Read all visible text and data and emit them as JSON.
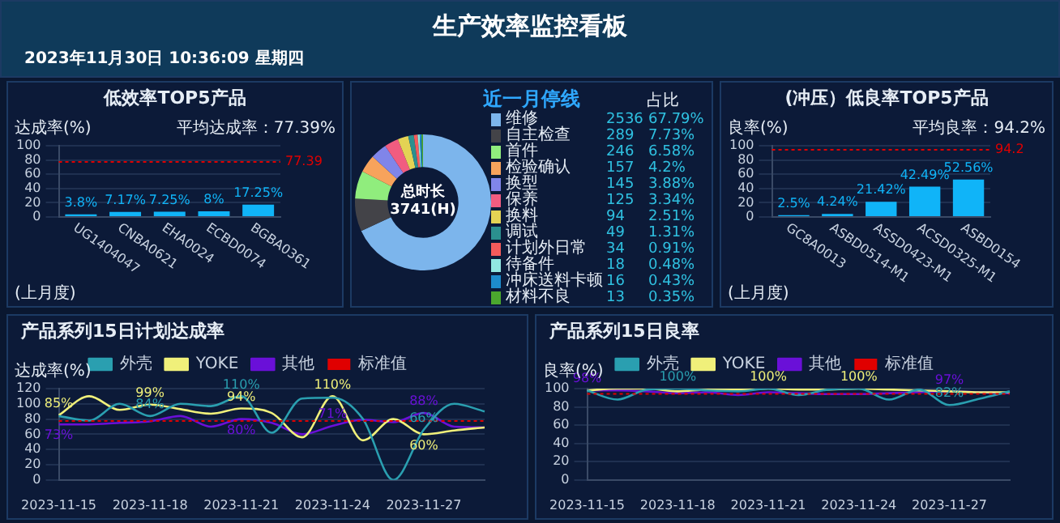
{
  "chart_data": [
    {
      "type": "other",
      "title": "生产效率监控看板",
      "annotations": [
        "2023年11月30日 10:36:09 星期四"
      ]
    },
    {
      "type": "bar",
      "title": "低效率TOP5产品",
      "ylabel": "达成率(%)",
      "categories": [
        "UG1404047",
        "CNBA0621",
        "EHA0024",
        "ECBD0074",
        "BGBA0361"
      ],
      "values": [
        3.8,
        7.17,
        7.25,
        8,
        17.25
      ],
      "value_labels": [
        "3.8%",
        "7.17%",
        "7.25%",
        "8%",
        "17.25%"
      ],
      "color": "#10b4f8",
      "ylim": [
        0,
        100
      ],
      "yticks": [
        0,
        20,
        40,
        60,
        80,
        100
      ],
      "grid": "y",
      "annotations": [
        "平均达成率：77.39%",
        "(上月度)"
      ],
      "ref_lines": [
        {
          "axis": "y",
          "value": 77.39,
          "label": "77.39",
          "color": "#e00000",
          "line_style": "dotted"
        }
      ]
    },
    {
      "type": "donut",
      "title": "近一月停线",
      "legend": "right",
      "legend_title": "占比",
      "annotations": [
        "总时长",
        "3741(H)",
        "2536",
        "289",
        "246",
        "157",
        "145",
        "125",
        "94",
        "49",
        "34",
        "18",
        "16",
        "13"
      ],
      "categories": [
        "维修",
        "自主检查",
        "首件",
        "检验确认",
        "换型",
        "保养",
        "换料",
        "调试",
        "计划外日常",
        "待备件",
        "冲床送料卡顿",
        "材料不良"
      ],
      "values": [
        67.79,
        7.73,
        6.58,
        4.2,
        3.88,
        3.34,
        2.51,
        1.31,
        0.91,
        0.48,
        0.43,
        0.35
      ],
      "value_labels": [
        "67.79%",
        "7.73%",
        "6.58%",
        "4.2%",
        "3.88%",
        "3.34%",
        "2.51%",
        "1.31%",
        "0.91%",
        "0.48%",
        "0.43%",
        "0.35%"
      ],
      "colors": [
        "#7cb5ec",
        "#434348",
        "#90ed7d",
        "#f7a35c",
        "#8085e9",
        "#f15c80",
        "#e4d354",
        "#2b908f",
        "#f45b5b",
        "#91e8e1",
        "#1d8ccc",
        "#4ba82e"
      ]
    },
    {
      "type": "bar",
      "title": "(冲压）低良率TOP5产品",
      "ylabel": "良率(%)",
      "categories": [
        "GC8A0013",
        "ASBD0514-M1",
        "ASSD0423-M1",
        "ACSD0325-M1",
        "ASBD0154"
      ],
      "values": [
        2.5,
        4.24,
        21.42,
        42.49,
        52.56
      ],
      "value_labels": [
        "2.5%",
        "4.24%",
        "21.42%",
        "42.49%",
        "52.56%"
      ],
      "color": "#10b4f8",
      "ylim": [
        0,
        100
      ],
      "yticks": [
        0,
        20,
        40,
        60,
        80,
        100
      ],
      "grid": "y",
      "annotations": [
        "平均良率：94.2%",
        "(上月度)"
      ],
      "ref_lines": [
        {
          "axis": "y",
          "value": 94.2,
          "label": "94.2",
          "color": "#e00000",
          "line_style": "dotted"
        }
      ]
    },
    {
      "type": "line",
      "title": "产品系列15日计划达成率",
      "ylabel": "达成率(%)",
      "legend": "top",
      "grid": "y",
      "ylim": [
        0,
        120
      ],
      "yticks": [
        0,
        20,
        40,
        60,
        80,
        100,
        120
      ],
      "categories": [
        "2023-11-15",
        null,
        null,
        "2023-11-18",
        null,
        null,
        "2023-11-21",
        null,
        null,
        "2023-11-24",
        null,
        null,
        "2023-11-27",
        null,
        null
      ],
      "series": [
        {
          "name": "外壳",
          "color": "#2a9fb0",
          "values": [
            84,
            78,
            100,
            84,
            100,
            97,
            110,
            62,
            107,
            108,
            80,
            0,
            66,
            100,
            90
          ],
          "value_labels": [
            null,
            null,
            null,
            "84%",
            null,
            null,
            "110%",
            null,
            null,
            null,
            null,
            null,
            "66%",
            null,
            null
          ]
        },
        {
          "name": "YOKE",
          "color": "#f0f07a",
          "values": [
            85,
            110,
            92,
            99,
            93,
            87,
            94,
            88,
            56,
            110,
            52,
            80,
            60,
            65,
            69
          ],
          "value_labels": [
            "85%",
            null,
            null,
            "99%",
            null,
            null,
            "94%",
            null,
            null,
            "110%",
            null,
            null,
            "60%",
            null,
            null
          ]
        },
        {
          "name": "其他",
          "color": "#6a10d8",
          "values": [
            73,
            73,
            75,
            77,
            84,
            70,
            80,
            75,
            60,
            71,
            79,
            76,
            88,
            70,
            69
          ],
          "value_labels": [
            "73%",
            null,
            null,
            null,
            null,
            null,
            "80%",
            null,
            null,
            "71%",
            null,
            null,
            "88%",
            null,
            null
          ]
        }
      ],
      "ref_lines": [
        {
          "axis": "y",
          "value": 77.39,
          "label": "标准值",
          "color": "#e00000",
          "line_style": "dotted"
        }
      ]
    },
    {
      "type": "line",
      "title": "产品系列15日良率",
      "ylabel": "良率(%)",
      "legend": "top",
      "grid": "y",
      "ylim": [
        0,
        100
      ],
      "yticks": [
        0,
        20,
        40,
        60,
        80,
        100
      ],
      "categories": [
        "2023-11-15",
        null,
        null,
        "2023-11-18",
        null,
        null,
        "2023-11-21",
        null,
        null,
        "2023-11-24",
        null,
        null,
        "2023-11-27",
        null,
        null
      ],
      "series": [
        {
          "name": "外壳",
          "color": "#2a9fb0",
          "values": [
            98,
            88,
            99,
            100,
            98,
            97,
            100,
            93,
            99,
            100,
            88,
            99,
            82,
            89,
            97
          ],
          "value_labels": [
            null,
            null,
            null,
            "100%",
            null,
            null,
            null,
            null,
            null,
            null,
            null,
            null,
            "82%",
            null,
            null
          ]
        },
        {
          "name": "YOKE",
          "color": "#f0f07a",
          "values": [
            98,
            100,
            100,
            97,
            99,
            99,
            100,
            99,
            99,
            100,
            99,
            98,
            97,
            96,
            96
          ],
          "value_labels": [
            null,
            null,
            null,
            null,
            null,
            null,
            "100%",
            null,
            null,
            "100%",
            null,
            null,
            null,
            null,
            null
          ]
        },
        {
          "name": "其他",
          "color": "#6a10d8",
          "values": [
            98,
            98,
            97,
            95,
            96,
            93,
            96,
            95,
            94,
            94,
            95,
            96,
            97,
            96,
            95
          ],
          "value_labels": [
            "98%",
            null,
            null,
            null,
            null,
            null,
            null,
            null,
            null,
            null,
            null,
            null,
            "97%",
            null,
            null
          ]
        }
      ],
      "ref_lines": [
        {
          "axis": "y",
          "value": 94.2,
          "label": "标准值",
          "color": "#e00000",
          "line_style": "dotted"
        }
      ]
    }
  ]
}
